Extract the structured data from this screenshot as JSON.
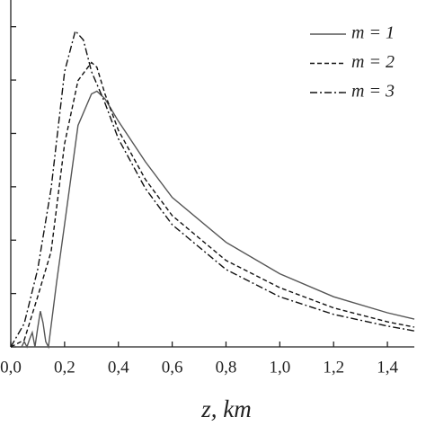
{
  "chart_data": {
    "type": "line",
    "x_label": "z, km",
    "xlim": [
      0,
      1.5
    ],
    "xticks": [
      {
        "value": 0,
        "label": "0,0"
      },
      {
        "value": 0.2,
        "label": "0,2"
      },
      {
        "value": 0.4,
        "label": "0,4"
      },
      {
        "value": 0.6,
        "label": "0,6"
      },
      {
        "value": 0.8,
        "label": "0,8"
      },
      {
        "value": 1.0,
        "label": "1,0"
      },
      {
        "value": 1.2,
        "label": "1,2"
      },
      {
        "value": 1.4,
        "label": "1,4"
      }
    ],
    "ylim": [
      0,
      6.5
    ],
    "yticks": [
      0,
      1,
      2,
      3,
      4,
      5,
      6
    ],
    "show_ytick_labels": false,
    "legend": "top-right",
    "series": [
      {
        "name": "m = 1",
        "color": "#555555",
        "dash": "solid",
        "x": [
          0,
          0.04,
          0.05,
          0.06,
          0.07,
          0.08,
          0.09,
          0.1,
          0.11,
          0.12,
          0.13,
          0.14,
          0.17,
          0.2,
          0.25,
          0.3,
          0.32,
          0.35,
          0.4,
          0.5,
          0.6,
          0.8,
          1.0,
          1.2,
          1.4,
          1.5
        ],
        "values": [
          0,
          0,
          0.1,
          0,
          0.15,
          0.27,
          0,
          0.35,
          0.67,
          0.45,
          0.1,
          0,
          1.2,
          2.3,
          4.15,
          4.74,
          4.79,
          4.65,
          4.23,
          3.47,
          2.8,
          1.96,
          1.37,
          0.94,
          0.64,
          0.52
        ]
      },
      {
        "name": "m = 2",
        "color": "#111111",
        "dash": "dash",
        "x": [
          0,
          0.05,
          0.1,
          0.15,
          0.2,
          0.25,
          0.3,
          0.32,
          0.35,
          0.4,
          0.5,
          0.6,
          0.8,
          1.0,
          1.2,
          1.4,
          1.5
        ],
        "values": [
          0,
          0.13,
          0.94,
          1.79,
          3.81,
          4.99,
          5.33,
          5.24,
          4.74,
          4.06,
          3.14,
          2.46,
          1.62,
          1.11,
          0.73,
          0.47,
          0.37
        ]
      },
      {
        "name": "m = 3",
        "color": "#111111",
        "dash": "dashdot",
        "x": [
          0,
          0.05,
          0.1,
          0.15,
          0.2,
          0.24,
          0.27,
          0.3,
          0.35,
          0.4,
          0.5,
          0.6,
          0.8,
          1.0,
          1.2,
          1.4,
          1.5
        ],
        "values": [
          0,
          0.44,
          1.45,
          2.97,
          5.16,
          5.92,
          5.75,
          5.16,
          4.57,
          3.9,
          2.97,
          2.29,
          1.45,
          0.94,
          0.61,
          0.39,
          0.3
        ]
      }
    ]
  }
}
